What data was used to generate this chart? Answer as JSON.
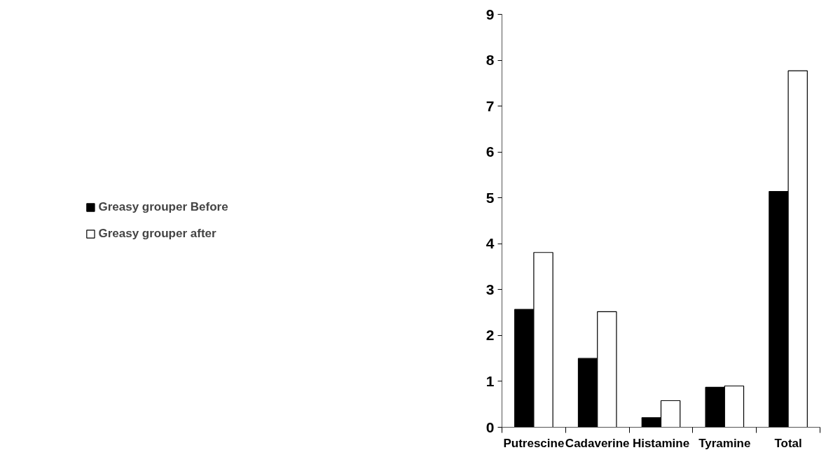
{
  "chart_data": {
    "type": "bar",
    "categories": [
      "Putrescine",
      "Cadaverine",
      "Histamine",
      "Tyramine",
      "Total"
    ],
    "series": [
      {
        "name": "Greasy grouper Before",
        "color": "#000000",
        "values": [
          2.57,
          1.5,
          0.21,
          0.87,
          5.14
        ]
      },
      {
        "name": "Greasy grouper after",
        "color": "#ffffff",
        "values": [
          3.81,
          2.52,
          0.58,
          0.9,
          7.77
        ]
      }
    ],
    "ylim": [
      0,
      9
    ],
    "yticks": [
      0,
      1,
      2,
      3,
      4,
      5,
      6,
      7,
      8,
      9
    ],
    "grid": false,
    "legend": "left"
  }
}
